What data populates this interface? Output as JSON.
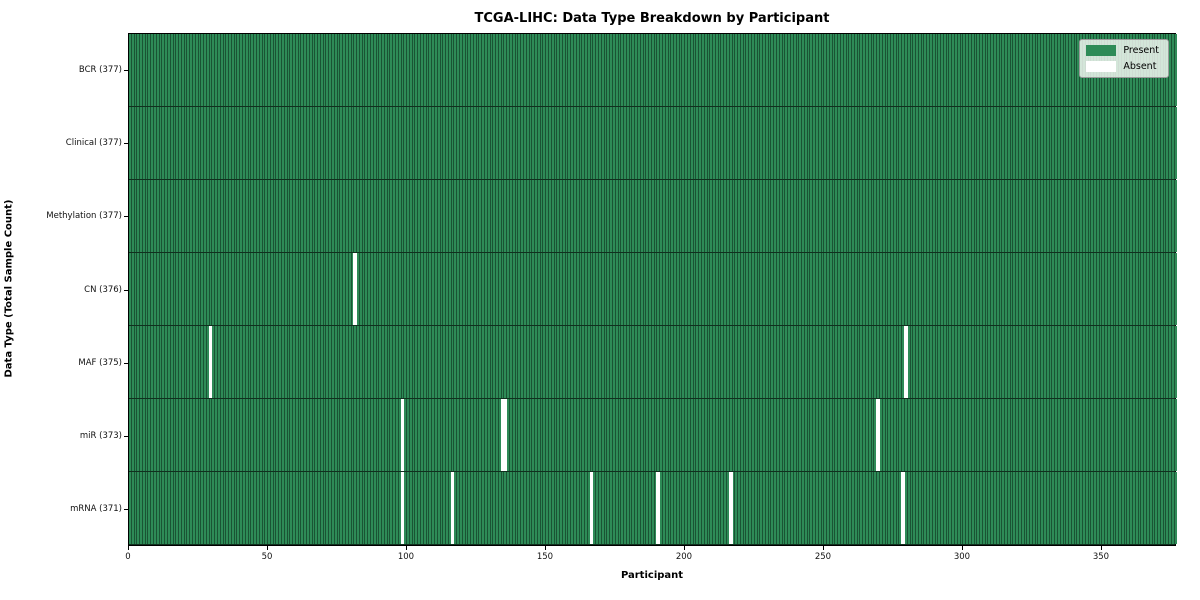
{
  "chart_data": {
    "type": "heatmap",
    "title": "TCGA-LIHC: Data Type Breakdown by Participant",
    "xlabel": "Participant",
    "ylabel": "Data Type (Total Sample Count)",
    "n_participants": 377,
    "xlim": [
      0,
      377
    ],
    "x_ticks": [
      0,
      50,
      100,
      150,
      200,
      250,
      300,
      350
    ],
    "grid": false,
    "legend_position": "upper right",
    "legend": [
      {
        "label": "Present",
        "color": "#2e8b57"
      },
      {
        "label": "Absent",
        "color": "#ffffff"
      }
    ],
    "colors": {
      "present": "#2e8b57",
      "absent": "#ffffff",
      "cell_edge": "rgba(0,10,5,0.42)"
    },
    "rows": [
      {
        "label": "BCR",
        "total": 377,
        "absent_participants": []
      },
      {
        "label": "Clinical",
        "total": 377,
        "absent_participants": []
      },
      {
        "label": "Methylation",
        "total": 377,
        "absent_participants": []
      },
      {
        "label": "CN",
        "total": 376,
        "absent_participants": [
          81
        ]
      },
      {
        "label": "MAF",
        "total": 375,
        "absent_participants": [
          29,
          279
        ]
      },
      {
        "label": "miR",
        "total": 373,
        "absent_participants": [
          98,
          134,
          135,
          269
        ]
      },
      {
        "label": "mRNA",
        "total": 371,
        "absent_participants": [
          98,
          116,
          166,
          190,
          216,
          278
        ]
      }
    ]
  }
}
